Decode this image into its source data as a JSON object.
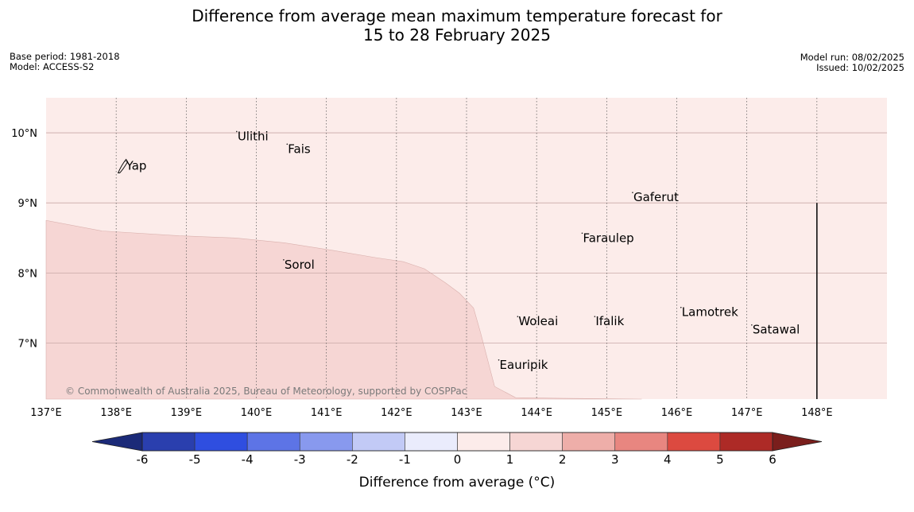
{
  "title_line1": "Difference from average mean maximum temperature forecast for",
  "title_line2": "15 to 28 February 2025",
  "meta_left": [
    "Base period: 1981-2018",
    "Model: ACCESS-S2"
  ],
  "meta_right": [
    "Model run: 08/02/2025",
    "Issued: 10/02/2025"
  ],
  "map": {
    "lon_range": [
      137,
      149
    ],
    "lat_range": [
      6.2,
      10.5
    ],
    "lat_ticks": [
      {
        "value": 10,
        "label": "10°N"
      },
      {
        "value": 9,
        "label": "9°N"
      },
      {
        "value": 8,
        "label": "8°N"
      },
      {
        "value": 7,
        "label": "7°N"
      }
    ],
    "lon_ticks": [
      {
        "value": 137,
        "label": "137°E"
      },
      {
        "value": 138,
        "label": "138°E"
      },
      {
        "value": 139,
        "label": "139°E"
      },
      {
        "value": 140,
        "label": "140°E"
      },
      {
        "value": 141,
        "label": "141°E"
      },
      {
        "value": 142,
        "label": "142°E"
      },
      {
        "value": 143,
        "label": "143°E"
      },
      {
        "value": 144,
        "label": "144°E"
      },
      {
        "value": 145,
        "label": "145°E"
      },
      {
        "value": 146,
        "label": "146°E"
      },
      {
        "value": 147,
        "label": "147°E"
      },
      {
        "value": 148,
        "label": "148°E"
      }
    ],
    "background_color": "#fcecea",
    "region_1_to_2_color": "#f6d6d4",
    "region_boundary": [
      [
        137.0,
        8.75
      ],
      [
        137.8,
        8.6
      ],
      [
        138.9,
        8.53
      ],
      [
        139.7,
        8.5
      ],
      [
        140.4,
        8.43
      ],
      [
        141.1,
        8.32
      ],
      [
        141.7,
        8.22
      ],
      [
        142.1,
        8.16
      ],
      [
        142.4,
        8.06
      ],
      [
        142.7,
        7.86
      ],
      [
        142.9,
        7.71
      ],
      [
        143.1,
        7.5
      ],
      [
        143.2,
        7.15
      ],
      [
        143.4,
        6.38
      ],
      [
        143.7,
        6.22
      ],
      [
        144.4,
        6.21
      ],
      [
        145.5,
        6.2
      ]
    ],
    "places": [
      {
        "name": "Ulithi",
        "lon": 139.72,
        "lat": 9.95
      },
      {
        "name": "Fais",
        "lon": 140.44,
        "lat": 9.77
      },
      {
        "name": "Yap",
        "lon": 138.13,
        "lat": 9.53
      },
      {
        "name": "Gaferut",
        "lon": 145.37,
        "lat": 9.08
      },
      {
        "name": "Faraulep",
        "lon": 144.65,
        "lat": 8.5
      },
      {
        "name": "Sorol",
        "lon": 140.39,
        "lat": 8.12
      },
      {
        "name": "Lamotrek",
        "lon": 146.06,
        "lat": 7.44
      },
      {
        "name": "Woleai",
        "lon": 143.73,
        "lat": 7.31
      },
      {
        "name": "Ifalik",
        "lon": 144.83,
        "lat": 7.31
      },
      {
        "name": "Satawal",
        "lon": 147.07,
        "lat": 7.19
      },
      {
        "name": "Eauripik",
        "lon": 143.46,
        "lat": 6.69
      }
    ],
    "boundary_line": {
      "lon": 148.0,
      "lat_from": 6.2,
      "lat_to": 9.0
    },
    "copyright": "© Commonwealth of Australia 2025, Bureau of Meteorology, supported by COSPPac"
  },
  "colorbar": {
    "label": "Difference from average (°C)",
    "ticks": [
      "-6",
      "-5",
      "-4",
      "-3",
      "-2",
      "-1",
      "0",
      "1",
      "2",
      "3",
      "4",
      "5",
      "6"
    ],
    "under_color": "#1b2a78",
    "over_color": "#7a1e1c",
    "colors": [
      "#2a3fae",
      "#2f4ee0",
      "#5d74e6",
      "#8899ee",
      "#c2caf6",
      "#eaecfc",
      "#fcecea",
      "#f6d6d4",
      "#eeaea9",
      "#e88680",
      "#dc4a40",
      "#ad2a26"
    ]
  }
}
